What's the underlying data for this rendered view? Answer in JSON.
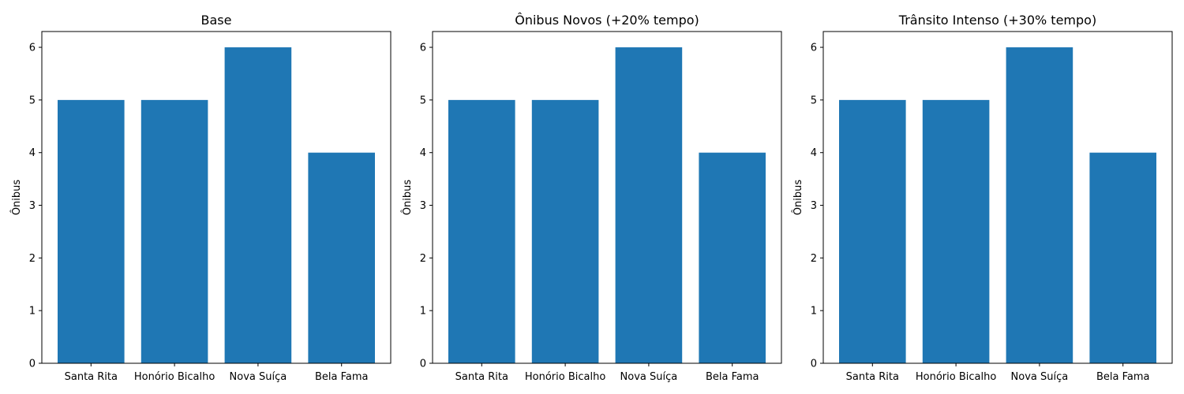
{
  "chart_data": [
    {
      "type": "bar",
      "title": "Base",
      "xlabel": "",
      "ylabel": "Ônibus",
      "categories": [
        "Santa Rita",
        "Honório Bicalho",
        "Nova Suíça",
        "Bela Fama"
      ],
      "values": [
        5,
        5,
        6,
        4
      ],
      "ylim": [
        0,
        6.3
      ],
      "yticks": [
        0,
        1,
        2,
        3,
        4,
        5,
        6
      ],
      "grid": false,
      "bar_color": "#1f77b4"
    },
    {
      "type": "bar",
      "title": "Ônibus Novos (+20% tempo)",
      "xlabel": "",
      "ylabel": "Ônibus",
      "categories": [
        "Santa Rita",
        "Honório Bicalho",
        "Nova Suíça",
        "Bela Fama"
      ],
      "values": [
        5,
        5,
        6,
        4
      ],
      "ylim": [
        0,
        6.3
      ],
      "yticks": [
        0,
        1,
        2,
        3,
        4,
        5,
        6
      ],
      "grid": false,
      "bar_color": "#1f77b4"
    },
    {
      "type": "bar",
      "title": "Trânsito Intenso (+30% tempo)",
      "xlabel": "",
      "ylabel": "Ônibus",
      "categories": [
        "Santa Rita",
        "Honório Bicalho",
        "Nova Suíça",
        "Bela Fama"
      ],
      "values": [
        5,
        5,
        6,
        4
      ],
      "ylim": [
        0,
        6.3
      ],
      "yticks": [
        0,
        1,
        2,
        3,
        4,
        5,
        6
      ],
      "grid": false,
      "bar_color": "#1f77b4"
    }
  ]
}
